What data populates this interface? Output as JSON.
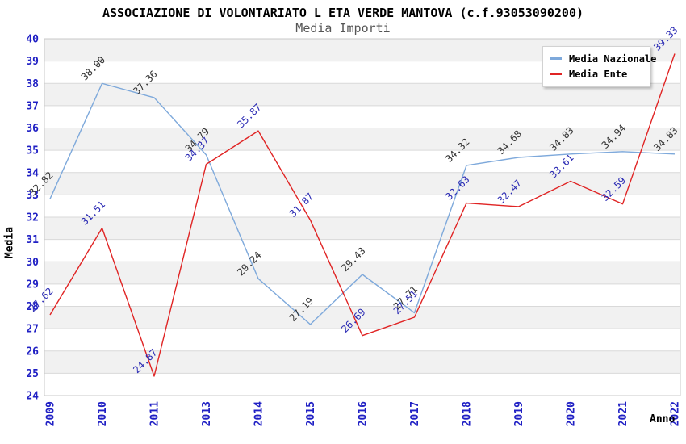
{
  "title": "ASSOCIAZIONE DI VOLONTARIATO L ETA VERDE MANTOVA (c.f.93053090200)",
  "subtitle": "Media Importi",
  "legend": {
    "items": [
      {
        "label": "Media Nazionale",
        "color": "#7EA9DB"
      },
      {
        "label": "Media Ente",
        "color": "#E02424"
      }
    ]
  },
  "colors": {
    "tick_label": "#2020C4",
    "grid_line": "#D9D9D9",
    "band_fill": "#F1F1F1",
    "plot_border": "#C8C8C8",
    "nazionale_line": "#7EA9DB",
    "nazionale_label": "#333333",
    "ente_line": "#E02424",
    "ente_label": "#2B2BB4"
  },
  "chart_data": {
    "type": "line",
    "title": "ASSOCIAZIONE DI VOLONTARIATO L ETA VERDE MANTOVA (c.f.93053090200)",
    "subtitle": "Media Importi",
    "xlabel": "Anno",
    "ylabel": "Media",
    "categories": [
      "2009",
      "2010",
      "2011",
      "2013",
      "2014",
      "2015",
      "2016",
      "2017",
      "2018",
      "2019",
      "2020",
      "2021",
      "2022"
    ],
    "series": [
      {
        "name": "Media Nazionale",
        "color": "#7EA9DB",
        "label_color": "#333333",
        "values": [
          32.82,
          38.0,
          37.36,
          34.79,
          29.24,
          27.19,
          29.43,
          27.71,
          34.32,
          34.68,
          34.83,
          34.94,
          34.83
        ]
      },
      {
        "name": "Media Ente",
        "color": "#E02424",
        "label_color": "#2B2BB4",
        "values": [
          27.62,
          31.51,
          24.87,
          34.37,
          35.87,
          31.87,
          26.69,
          27.51,
          32.63,
          32.47,
          33.61,
          32.59,
          39.33
        ]
      }
    ],
    "ylim": [
      24,
      40
    ],
    "ytick_step": 1,
    "yticks": [
      24,
      25,
      26,
      27,
      28,
      29,
      30,
      31,
      32,
      33,
      34,
      35,
      36,
      37,
      38,
      39,
      40
    ],
    "grid": true,
    "zebra_bands": true,
    "legend_position": "top-right",
    "data_labels": "rotated-45deg, two decimals"
  },
  "axis": {
    "y_title": "Media",
    "x_title": "Anno"
  }
}
